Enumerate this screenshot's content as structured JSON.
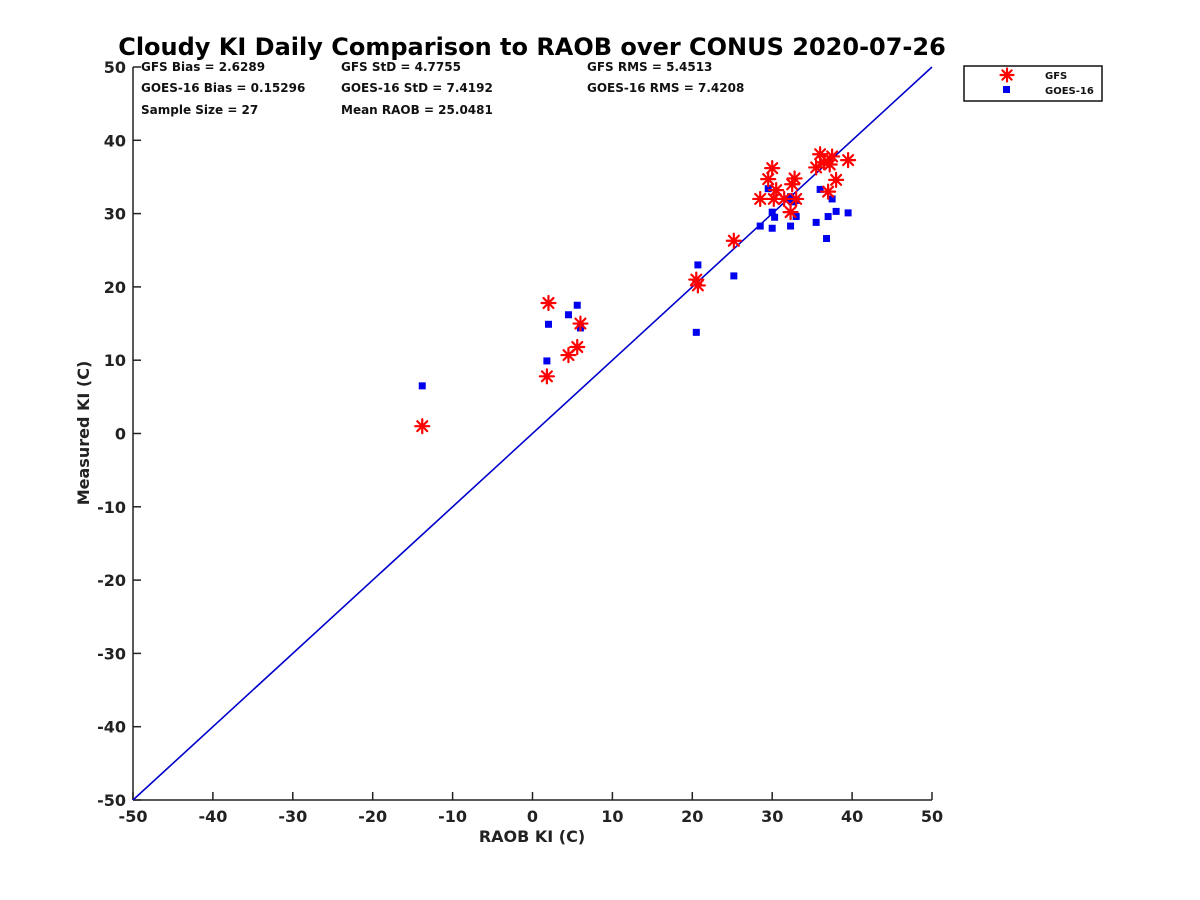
{
  "chart_data": {
    "type": "scatter",
    "title": "Cloudy KI Daily Comparison to RAOB over CONUS 2020-07-26",
    "xlabel": "RAOB KI (C)",
    "ylabel": "Measured KI (C)",
    "xlim": [
      -50,
      50
    ],
    "ylim": [
      -50,
      50
    ],
    "xticks": [
      "-50",
      "-40",
      "-30",
      "-20",
      "-10",
      "0",
      "10",
      "20",
      "30",
      "40",
      "50"
    ],
    "yticks": [
      "-50",
      "-40",
      "-30",
      "-20",
      "-10",
      "0",
      "10",
      "20",
      "30",
      "40",
      "50"
    ],
    "grid": false,
    "legend_position": "outside-top-right",
    "reference_line": {
      "type": "one-to-one",
      "x": [
        -50,
        50
      ],
      "y": [
        -50,
        50
      ],
      "color": "#0000cc"
    },
    "stats": {
      "gfs_bias": "GFS Bias = 2.6289",
      "gfs_std": "GFS StD = 4.7755",
      "gfs_rms": "GFS RMS = 5.4513",
      "goes_bias": "GOES-16 Bias = 0.15296",
      "goes_std": "GOES-16 StD = 7.4192",
      "goes_rms": "GOES-16 RMS = 7.4208",
      "sample_size": "Sample Size = 27",
      "mean_raob": "Mean RAOB = 25.0481"
    },
    "series": [
      {
        "name": "GFS",
        "marker": "asterisk",
        "color": "#ff0000",
        "points": [
          [
            -13.8,
            1.0
          ],
          [
            1.8,
            7.8
          ],
          [
            2.0,
            17.8
          ],
          [
            4.5,
            10.7
          ],
          [
            5.6,
            11.8
          ],
          [
            6.0,
            15.0
          ],
          [
            20.5,
            21.0
          ],
          [
            20.7,
            20.2
          ],
          [
            25.2,
            26.3
          ],
          [
            28.5,
            32.0
          ],
          [
            29.5,
            34.7
          ],
          [
            30.0,
            36.2
          ],
          [
            30.2,
            32.0
          ],
          [
            30.5,
            33.2
          ],
          [
            31.5,
            32.0
          ],
          [
            32.3,
            30.2
          ],
          [
            32.5,
            34.0
          ],
          [
            32.8,
            34.8
          ],
          [
            33.0,
            32.0
          ],
          [
            35.5,
            36.3
          ],
          [
            36.0,
            38.1
          ],
          [
            36.5,
            37.0
          ],
          [
            37.0,
            33.0
          ],
          [
            37.5,
            37.8
          ],
          [
            37.2,
            36.7
          ],
          [
            38.0,
            34.6
          ],
          [
            39.5,
            37.3
          ]
        ]
      },
      {
        "name": "GOES-16",
        "marker": "square",
        "color": "#0000ee",
        "points": [
          [
            -13.8,
            6.5
          ],
          [
            1.8,
            9.9
          ],
          [
            2.0,
            14.9
          ],
          [
            4.5,
            16.2
          ],
          [
            5.6,
            17.5
          ],
          [
            6.0,
            14.4
          ],
          [
            20.5,
            13.8
          ],
          [
            20.7,
            23.0
          ],
          [
            25.2,
            21.5
          ],
          [
            28.5,
            28.3
          ],
          [
            29.5,
            33.4
          ],
          [
            30.0,
            30.2
          ],
          [
            30.0,
            28.0
          ],
          [
            30.3,
            29.5
          ],
          [
            32.0,
            32.0
          ],
          [
            32.3,
            28.3
          ],
          [
            32.3,
            32.3
          ],
          [
            32.5,
            31.6
          ],
          [
            33.0,
            31.8
          ],
          [
            33.0,
            29.6
          ],
          [
            35.5,
            28.8
          ],
          [
            36.0,
            33.3
          ],
          [
            36.8,
            26.6
          ],
          [
            37.0,
            29.6
          ],
          [
            37.5,
            32.0
          ],
          [
            38.0,
            30.3
          ],
          [
            39.5,
            30.1
          ]
        ]
      }
    ]
  }
}
